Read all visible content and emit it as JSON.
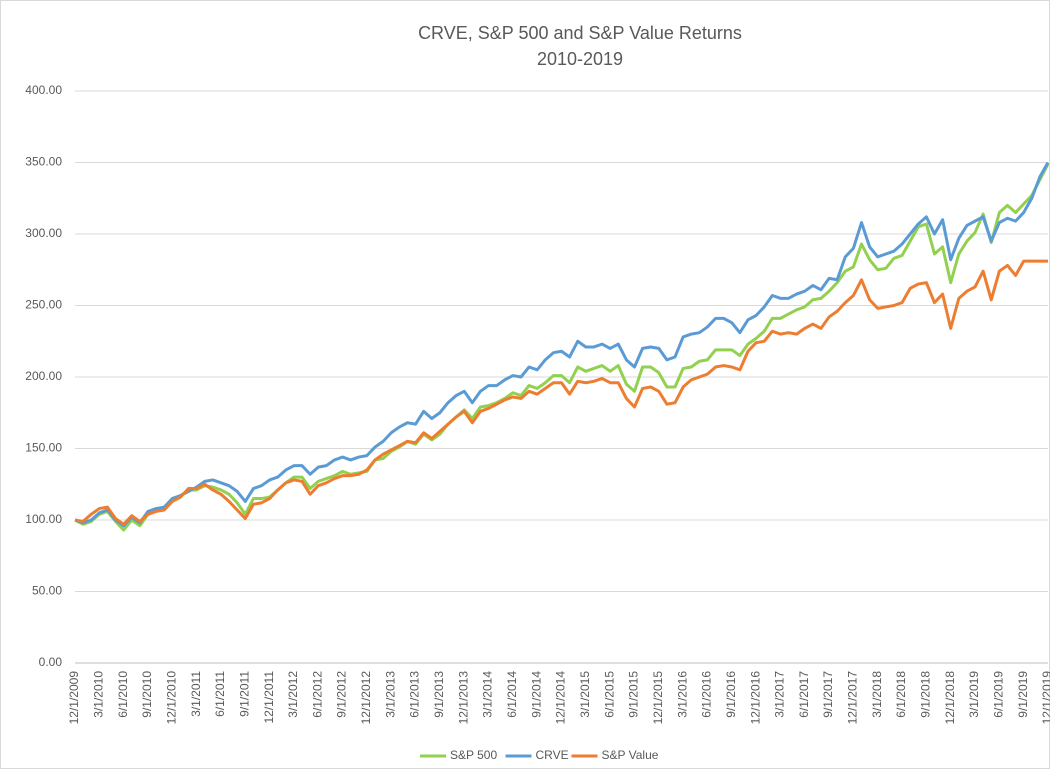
{
  "chart_data": {
    "type": "line",
    "title": "CRVE, S&P 500 and S&P Value Returns",
    "subtitle": "2010-2019",
    "categories": [
      "12/1/2009",
      null,
      null,
      "3/1/2010",
      null,
      null,
      "6/1/2010",
      null,
      null,
      "9/1/2010",
      null,
      null,
      "12/1/2010",
      null,
      null,
      "3/1/2011",
      null,
      null,
      "6/1/2011",
      null,
      null,
      "9/1/2011",
      null,
      null,
      "12/1/2011",
      null,
      null,
      "3/1/2012",
      null,
      null,
      "6/1/2012",
      null,
      null,
      "9/1/2012",
      null,
      null,
      "12/1/2012",
      null,
      null,
      "3/1/2013",
      null,
      null,
      "6/1/2013",
      null,
      null,
      "9/1/2013",
      null,
      null,
      "12/1/2013",
      null,
      null,
      "3/1/2014",
      null,
      null,
      "6/1/2014",
      null,
      null,
      "9/1/2014",
      null,
      null,
      "12/1/2014",
      null,
      null,
      "3/1/2015",
      null,
      null,
      "6/1/2015",
      null,
      null,
      "9/1/2015",
      null,
      null,
      "12/1/2015",
      null,
      null,
      "3/1/2016",
      null,
      null,
      "6/1/2016",
      null,
      null,
      "9/1/2016",
      null,
      null,
      "12/1/2016",
      null,
      null,
      "3/1/2017",
      null,
      null,
      "6/1/2017",
      null,
      null,
      "9/1/2017",
      null,
      null,
      "12/1/2017",
      null,
      null,
      "3/1/2018",
      null,
      null,
      "6/1/2018",
      null,
      null,
      "9/1/2018",
      null,
      null,
      "12/1/2018",
      null,
      null,
      "3/1/2019",
      null,
      null,
      "6/1/2019",
      null,
      null,
      "9/1/2019",
      null,
      null,
      "12/1/2019"
    ],
    "series": [
      {
        "name": "S&P 500",
        "color": "#92d050",
        "values": [
          100,
          97,
          99,
          104,
          106,
          99,
          93,
          100,
          96,
          104,
          108,
          108,
          115,
          117,
          121,
          121,
          124,
          123,
          121,
          118,
          112,
          104,
          115,
          115,
          116,
          121,
          126,
          130,
          130,
          122,
          127,
          129,
          131,
          134,
          132,
          133,
          134,
          142,
          143,
          148,
          151,
          155,
          153,
          160,
          156,
          160,
          167,
          172,
          177,
          171,
          179,
          180,
          182,
          185,
          189,
          187,
          194,
          192,
          196,
          201,
          201,
          196,
          207,
          204,
          206,
          208,
          204,
          208,
          195,
          190,
          207,
          207,
          203,
          193,
          193,
          206,
          207,
          211,
          212,
          219,
          219,
          219,
          215,
          223,
          227,
          232,
          241,
          241,
          244,
          247,
          249,
          254,
          255,
          260,
          266,
          274,
          277,
          293,
          282,
          275,
          276,
          283,
          285,
          295,
          305,
          307,
          286,
          291,
          266,
          286,
          295,
          301,
          314,
          294,
          315,
          320,
          315,
          321,
          327,
          338,
          349
        ]
      },
      {
        "name": "CRVE",
        "color": "#5b9bd5",
        "values": [
          100,
          98,
          100,
          105,
          107,
          100,
          96,
          102,
          98,
          106,
          108,
          109,
          115,
          117,
          120,
          123,
          127,
          128,
          126,
          124,
          120,
          113,
          122,
          124,
          128,
          130,
          135,
          138,
          138,
          132,
          137,
          138,
          142,
          144,
          142,
          144,
          145,
          151,
          155,
          161,
          165,
          168,
          167,
          176,
          171,
          175,
          182,
          187,
          190,
          182,
          190,
          194,
          194,
          198,
          201,
          200,
          207,
          205,
          212,
          217,
          218,
          214,
          225,
          221,
          221,
          223,
          220,
          223,
          212,
          207,
          220,
          221,
          220,
          212,
          214,
          228,
          230,
          231,
          235,
          241,
          241,
          238,
          231,
          240,
          243,
          249,
          257,
          255,
          255,
          258,
          260,
          264,
          261,
          269,
          268,
          284,
          290,
          308,
          291,
          284,
          286,
          288,
          293,
          300,
          307,
          312,
          300,
          310,
          282,
          297,
          306,
          309,
          312,
          295,
          308,
          311,
          309,
          315,
          325,
          340,
          350
        ]
      },
      {
        "name": "S&P Value",
        "color": "#ed7d31",
        "values": [
          100,
          99,
          104,
          108,
          109,
          101,
          97,
          103,
          99,
          104,
          106,
          107,
          113,
          116,
          122,
          122,
          125,
          121,
          118,
          113,
          107,
          101,
          111,
          112,
          115,
          121,
          126,
          128,
          127,
          118,
          124,
          126,
          129,
          131,
          131,
          132,
          135,
          142,
          146,
          149,
          152,
          155,
          154,
          161,
          157,
          162,
          167,
          172,
          176,
          168,
          176,
          178,
          181,
          184,
          186,
          185,
          190,
          188,
          192,
          196,
          196,
          188,
          197,
          196,
          197,
          199,
          196,
          196,
          185,
          179,
          192,
          193,
          190,
          181,
          182,
          193,
          198,
          200,
          202,
          207,
          208,
          207,
          205,
          218,
          224,
          225,
          232,
          230,
          231,
          230,
          234,
          237,
          234,
          242,
          246,
          252,
          257,
          268,
          254,
          248,
          249,
          250,
          252,
          262,
          265,
          266,
          252,
          258,
          234,
          255,
          260,
          263,
          274,
          254,
          274,
          278,
          271,
          281,
          281,
          281,
          281
        ]
      }
    ],
    "ylim": [
      0,
      400
    ],
    "yticks": [
      {
        "value": 0,
        "label": "0.00"
      },
      {
        "value": 50,
        "label": "50.00"
      },
      {
        "value": 100,
        "label": "100.00"
      },
      {
        "value": 150,
        "label": "150.00"
      },
      {
        "value": 200,
        "label": "200.00"
      },
      {
        "value": 250,
        "label": "250.00"
      },
      {
        "value": 300,
        "label": "300.00"
      },
      {
        "value": 350,
        "label": "350.00"
      },
      {
        "value": 400,
        "label": "400.00"
      }
    ],
    "grid": true,
    "legend": "bottom"
  }
}
